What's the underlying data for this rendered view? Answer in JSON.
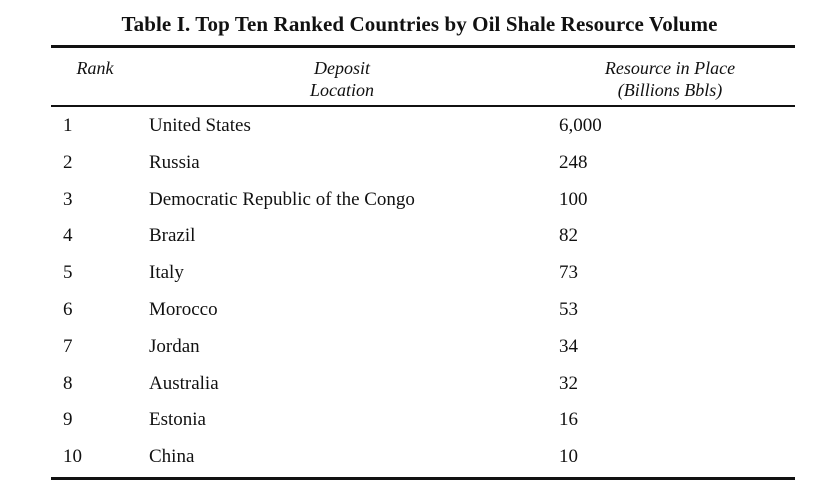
{
  "table": {
    "title": "Table I. Top Ten Ranked Countries by Oil Shale Resource Volume",
    "headers": {
      "rank": "Rank",
      "location_line1": "Deposit",
      "location_line2": "Location",
      "resource_line1": "Resource in Place",
      "resource_line2": "(Billions Bbls)"
    },
    "rows": [
      {
        "rank": "1",
        "country": "United States",
        "volume": "6,000"
      },
      {
        "rank": "2",
        "country": "Russia",
        "volume": "248"
      },
      {
        "rank": "3",
        "country": "Democratic Republic of the Congo",
        "volume": "100"
      },
      {
        "rank": "4",
        "country": "Brazil",
        "volume": "82"
      },
      {
        "rank": "5",
        "country": "Italy",
        "volume": "73"
      },
      {
        "rank": "6",
        "country": "Morocco",
        "volume": "53"
      },
      {
        "rank": "7",
        "country": "Jordan",
        "volume": "34"
      },
      {
        "rank": "8",
        "country": "Australia",
        "volume": "32"
      },
      {
        "rank": "9",
        "country": "Estonia",
        "volume": "16"
      },
      {
        "rank": "10",
        "country": "China",
        "volume": "10"
      }
    ]
  }
}
